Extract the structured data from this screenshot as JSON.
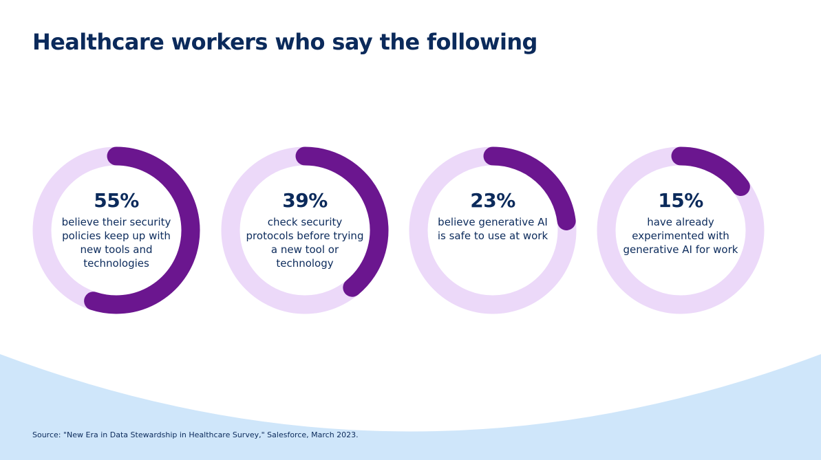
{
  "title": "Healthcare workers who say the following",
  "source": "Source: \"New Era in Data Stewardship in Healthcare Survey,\" Salesforce, March 2023.",
  "colors": {
    "track": "#ecd9f9",
    "arc": "#6b168f",
    "text": "#0b2a5b",
    "wave": "#cfe6fa"
  },
  "chart_data": {
    "type": "pie",
    "title": "Healthcare workers who say the following",
    "items": [
      {
        "value": 55,
        "label": "55%",
        "text": "believe their security policies keep up with new tools and technologies"
      },
      {
        "value": 39,
        "label": "39%",
        "text": "check security protocols before trying a new tool or technology"
      },
      {
        "value": 23,
        "label": "23%",
        "text": "believe generative AI is safe to use at work"
      },
      {
        "value": 15,
        "label": "15%",
        "text": "have already experimented with generative AI for work"
      }
    ]
  }
}
